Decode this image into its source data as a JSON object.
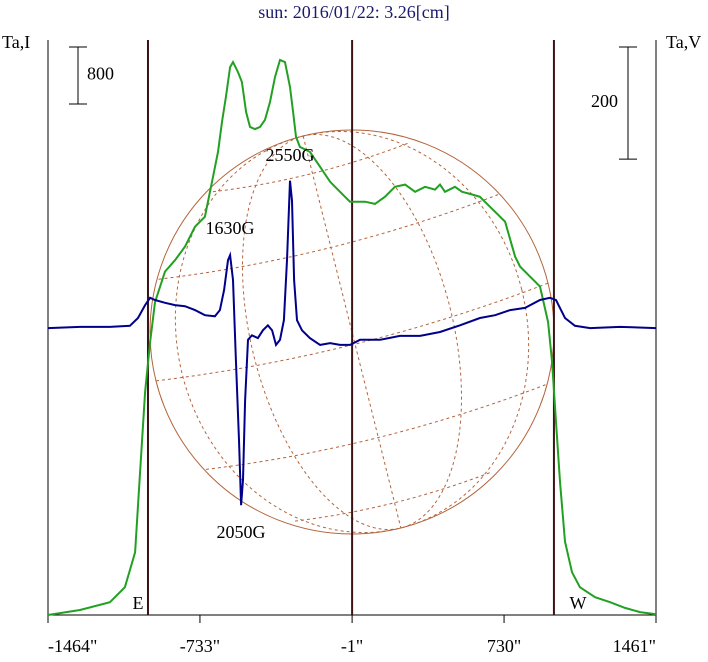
{
  "chart_data": {
    "type": "line",
    "title": "sun: 2016/01/22: 3.26[cm]",
    "y_label": "Ta,I",
    "y2_label": "Ta,V",
    "y_scale_bar": 800,
    "y2_scale_bar": 200,
    "limb_labels": [
      "E",
      "W"
    ],
    "vlines": [
      -983,
      -1,
      970
    ],
    "annotations": [
      "2550G",
      "1630G",
      "2050G"
    ],
    "xlim": [
      -1464,
      1461
    ],
    "xticks": [
      {
        "value": -1464,
        "label": "-1464\""
      },
      {
        "value": -733,
        "label": "-733\""
      },
      {
        "value": -1,
        "label": "-1\""
      },
      {
        "value": 730,
        "label": "730\""
      },
      {
        "value": 1461,
        "label": "1461\""
      }
    ],
    "ylim": [
      0,
      8070
    ],
    "y2lim": [
      -512,
      514
    ],
    "series": [
      {
        "color": "#22a022",
        "x": [
          -1464,
          -1310,
          -1166,
          -1094,
          -1045,
          -1021,
          -997,
          -973,
          -949,
          -901,
          -853,
          -805,
          -757,
          -709,
          -675,
          -646,
          -627,
          -608,
          -588,
          -574,
          -550,
          -531,
          -511,
          -492,
          -468,
          -444,
          -420,
          -396,
          -372,
          -348,
          -324,
          -300,
          -285,
          -271,
          -252,
          -204,
          -155,
          -107,
          -35,
          -11,
          61,
          109,
          157,
          205,
          254,
          302,
          350,
          398,
          422,
          446,
          494,
          528,
          566,
          614,
          662,
          735,
          783,
          807,
          855,
          903,
          942,
          961,
          980,
          999,
          1023,
          1057,
          1095,
          1168,
          1240,
          1312,
          1384,
          1461
        ],
        "values": [
          0,
          70,
          180,
          390,
          880,
          2010,
          3130,
          3830,
          4390,
          4820,
          4980,
          5170,
          5450,
          5590,
          6080,
          6500,
          6920,
          7270,
          7690,
          7760,
          7620,
          7480,
          7060,
          6850,
          6820,
          6850,
          6950,
          7200,
          7550,
          7790,
          7760,
          7410,
          7060,
          6710,
          6570,
          6500,
          6290,
          6080,
          5870,
          5800,
          5800,
          5770,
          5870,
          6010,
          6040,
          5940,
          6010,
          5970,
          6040,
          5940,
          6010,
          5940,
          5910,
          5870,
          5730,
          5520,
          5030,
          4890,
          4750,
          4610,
          4110,
          3550,
          2710,
          1870,
          1030,
          600,
          390,
          250,
          180,
          100,
          40,
          10
        ]
      },
      {
        "color": "#00008b",
        "axis": "y2",
        "x": [
          -1464,
          -1310,
          -1166,
          -1070,
          -1031,
          -997,
          -973,
          -949,
          -901,
          -853,
          -805,
          -757,
          -709,
          -661,
          -637,
          -617,
          -598,
          -588,
          -574,
          -560,
          -545,
          -535,
          -526,
          -516,
          -502,
          -483,
          -454,
          -430,
          -406,
          -386,
          -367,
          -348,
          -329,
          -314,
          -300,
          -290,
          -280,
          -266,
          -242,
          -204,
          -155,
          -107,
          -59,
          -11,
          37,
          133,
          229,
          326,
          422,
          518,
          614,
          687,
          759,
          831,
          903,
          951,
          980,
          1023,
          1071,
          1144,
          1288,
          1461
        ],
        "values": [
          0,
          2,
          2,
          4,
          18,
          41,
          54,
          50,
          45,
          41,
          39,
          32,
          23,
          21,
          32,
          68,
          121,
          130,
          86,
          -57,
          -200,
          -316,
          -271,
          -129,
          -21,
          -13,
          -18,
          -4,
          5,
          -4,
          -30,
          -21,
          14,
          121,
          263,
          227,
          86,
          14,
          -4,
          -18,
          -30,
          -27,
          -30,
          -30,
          -21,
          -21,
          -14,
          -14,
          -7,
          5,
          18,
          23,
          32,
          36,
          50,
          54,
          50,
          18,
          4,
          0,
          2,
          0
        ]
      }
    ]
  }
}
